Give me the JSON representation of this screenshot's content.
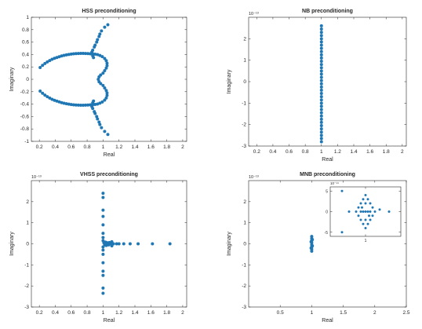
{
  "chart_data": [
    {
      "type": "scatter",
      "title": "HSS preconditioning",
      "xlabel": "Real",
      "ylabel": "Imaginary",
      "exponent": "",
      "xlim": [
        0.1,
        2.05
      ],
      "ylim": [
        -1,
        1
      ],
      "xticks": [
        0.2,
        0.4,
        0.6,
        0.8,
        1,
        1.2,
        1.4,
        1.6,
        1.8,
        2
      ],
      "yticks": [
        -1,
        -0.8,
        -0.6,
        -0.4,
        -0.2,
        0,
        0.2,
        0.4,
        0.6,
        0.8,
        1
      ],
      "xticklabels": [
        "0.2",
        "0.4",
        "0.6",
        "0.8",
        "1",
        "1.2",
        "1.4",
        "1.6",
        "1.8",
        "2"
      ],
      "yticklabels": [
        "-1",
        "-0.8",
        "-0.6",
        "-0.4",
        "-0.2",
        "0",
        "0.2",
        "0.4",
        "0.6",
        "0.8",
        "1"
      ],
      "color": "#1f77b4",
      "points": [
        [
          0.21,
          0.19
        ],
        [
          0.24,
          0.225
        ],
        [
          0.27,
          0.255
        ],
        [
          0.3,
          0.28
        ],
        [
          0.33,
          0.302
        ],
        [
          0.36,
          0.322
        ],
        [
          0.39,
          0.338
        ],
        [
          0.42,
          0.352
        ],
        [
          0.45,
          0.364
        ],
        [
          0.48,
          0.376
        ],
        [
          0.51,
          0.386
        ],
        [
          0.54,
          0.394
        ],
        [
          0.57,
          0.401
        ],
        [
          0.6,
          0.407
        ],
        [
          0.63,
          0.411
        ],
        [
          0.66,
          0.414
        ],
        [
          0.69,
          0.416
        ],
        [
          0.72,
          0.417
        ],
        [
          0.75,
          0.417
        ],
        [
          0.78,
          0.416
        ],
        [
          0.81,
          0.414
        ],
        [
          0.84,
          0.412
        ],
        [
          0.87,
          0.41
        ],
        [
          0.9,
          0.405
        ],
        [
          0.93,
          0.398
        ],
        [
          0.96,
          0.385
        ],
        [
          0.99,
          0.365
        ],
        [
          1.02,
          0.335
        ],
        [
          1.04,
          0.3
        ],
        [
          1.05,
          0.26
        ],
        [
          1.05,
          0.22
        ],
        [
          1.04,
          0.18
        ],
        [
          1.02,
          0.14
        ],
        [
          1.0,
          0.1
        ],
        [
          0.97,
          0.07
        ],
        [
          0.95,
          0.04
        ],
        [
          0.94,
          0.0
        ],
        [
          0.21,
          -0.19
        ],
        [
          0.24,
          -0.225
        ],
        [
          0.27,
          -0.255
        ],
        [
          0.3,
          -0.28
        ],
        [
          0.33,
          -0.302
        ],
        [
          0.36,
          -0.322
        ],
        [
          0.39,
          -0.338
        ],
        [
          0.42,
          -0.352
        ],
        [
          0.45,
          -0.364
        ],
        [
          0.48,
          -0.376
        ],
        [
          0.51,
          -0.386
        ],
        [
          0.54,
          -0.394
        ],
        [
          0.57,
          -0.401
        ],
        [
          0.6,
          -0.407
        ],
        [
          0.63,
          -0.411
        ],
        [
          0.66,
          -0.414
        ],
        [
          0.69,
          -0.416
        ],
        [
          0.72,
          -0.417
        ],
        [
          0.75,
          -0.417
        ],
        [
          0.78,
          -0.416
        ],
        [
          0.81,
          -0.414
        ],
        [
          0.84,
          -0.412
        ],
        [
          0.87,
          -0.41
        ],
        [
          0.9,
          -0.405
        ],
        [
          0.93,
          -0.398
        ],
        [
          0.96,
          -0.385
        ],
        [
          0.99,
          -0.365
        ],
        [
          1.02,
          -0.335
        ],
        [
          1.04,
          -0.3
        ],
        [
          1.05,
          -0.26
        ],
        [
          1.05,
          -0.22
        ],
        [
          1.04,
          -0.18
        ],
        [
          1.02,
          -0.14
        ],
        [
          1.0,
          -0.1
        ],
        [
          0.97,
          -0.07
        ],
        [
          0.95,
          -0.04
        ],
        [
          0.86,
          0.44
        ],
        [
          0.87,
          0.38
        ],
        [
          0.87,
          0.47
        ],
        [
          0.88,
          0.35
        ],
        [
          0.89,
          0.52
        ],
        [
          0.9,
          0.55
        ],
        [
          0.92,
          0.6
        ],
        [
          0.93,
          0.64
        ],
        [
          0.95,
          0.69
        ],
        [
          0.96,
          0.73
        ],
        [
          0.98,
          0.78
        ],
        [
          1.02,
          0.84
        ],
        [
          1.06,
          0.88
        ],
        [
          0.86,
          -0.44
        ],
        [
          0.87,
          -0.38
        ],
        [
          0.87,
          -0.47
        ],
        [
          0.88,
          -0.35
        ],
        [
          0.89,
          -0.52
        ],
        [
          0.9,
          -0.55
        ],
        [
          0.92,
          -0.6
        ],
        [
          0.93,
          -0.64
        ],
        [
          0.95,
          -0.69
        ],
        [
          0.96,
          -0.73
        ],
        [
          0.98,
          -0.78
        ],
        [
          1.02,
          -0.84
        ],
        [
          1.06,
          -0.89
        ]
      ]
    },
    {
      "type": "scatter",
      "title": "NB preconditioning",
      "xlabel": "Real",
      "ylabel": "Imaginary",
      "exponent": "10⁻¹³",
      "xlim": [
        0.1,
        2.05
      ],
      "ylim": [
        -3,
        3
      ],
      "xticks": [
        0.2,
        0.4,
        0.6,
        0.8,
        1,
        1.2,
        1.4,
        1.6,
        1.8,
        2
      ],
      "yticks": [
        -3,
        -2,
        -1,
        0,
        1,
        2
      ],
      "xticklabels": [
        "0.2",
        "0.4",
        "0.6",
        "0.8",
        "1",
        "1.2",
        "1.4",
        "1.6",
        "1.8",
        "2"
      ],
      "yticklabels": [
        "-3",
        "-2",
        "-1",
        "0",
        "1",
        "2"
      ],
      "color": "#1f77b4",
      "points": [
        [
          1,
          2.6
        ],
        [
          1,
          2.45
        ],
        [
          1,
          2.3
        ],
        [
          1,
          2.15
        ],
        [
          1,
          2.0
        ],
        [
          1,
          1.85
        ],
        [
          1,
          1.7
        ],
        [
          1,
          1.55
        ],
        [
          1,
          1.4
        ],
        [
          1,
          1.25
        ],
        [
          1,
          1.1
        ],
        [
          1,
          0.95
        ],
        [
          1,
          0.8
        ],
        [
          1,
          0.65
        ],
        [
          1,
          0.5
        ],
        [
          1,
          0.35
        ],
        [
          1,
          0.2
        ],
        [
          1,
          0.05
        ],
        [
          1,
          -0.1
        ],
        [
          1,
          -0.25
        ],
        [
          1,
          -0.4
        ],
        [
          1,
          -0.55
        ],
        [
          1,
          -0.7
        ],
        [
          1,
          -0.85
        ],
        [
          1,
          -1.0
        ],
        [
          1,
          -1.15
        ],
        [
          1,
          -1.3
        ],
        [
          1,
          -1.45
        ],
        [
          1,
          -1.6
        ],
        [
          1,
          -1.75
        ],
        [
          1,
          -1.9
        ],
        [
          1,
          -2.05
        ],
        [
          1,
          -2.2
        ],
        [
          1,
          -2.35
        ],
        [
          1,
          -2.5
        ],
        [
          1,
          -2.65
        ],
        [
          1,
          -2.8
        ]
      ]
    },
    {
      "type": "scatter",
      "title": "VHSS preconditioning",
      "xlabel": "Real",
      "ylabel": "Imaginary",
      "exponent": "10⁻¹³",
      "xlim": [
        0.1,
        2.05
      ],
      "ylim": [
        -3,
        3
      ],
      "xticks": [
        0.2,
        0.4,
        0.6,
        0.8,
        1,
        1.2,
        1.4,
        1.6,
        1.8,
        2
      ],
      "yticks": [
        -3,
        -2,
        -1,
        0,
        1,
        2
      ],
      "xticklabels": [
        "0.2",
        "0.4",
        "0.6",
        "0.8",
        "1",
        "1.2",
        "1.4",
        "1.6",
        "1.8",
        "2"
      ],
      "yticklabels": [
        "-3",
        "-2",
        "-1",
        "0",
        "1",
        "2"
      ],
      "color": "#1f77b4",
      "points": [
        [
          1,
          2.4
        ],
        [
          1,
          2.2
        ],
        [
          1,
          1.6
        ],
        [
          1,
          1.3
        ],
        [
          1,
          0.9
        ],
        [
          1,
          0.5
        ],
        [
          1,
          0.3
        ],
        [
          1,
          0.15
        ],
        [
          1,
          -0.15
        ],
        [
          1,
          -0.3
        ],
        [
          1,
          -0.5
        ],
        [
          1,
          -0.9
        ],
        [
          1,
          -1.3
        ],
        [
          1,
          -1.5
        ],
        [
          1,
          -2.1
        ],
        [
          1,
          -2.35
        ],
        [
          1.01,
          0.05
        ],
        [
          1.02,
          -0.05
        ],
        [
          1.03,
          0.08
        ],
        [
          1.04,
          -0.08
        ],
        [
          1.05,
          0.05
        ],
        [
          1.06,
          0
        ],
        [
          1.07,
          -0.05
        ],
        [
          1.08,
          0.06
        ],
        [
          1.1,
          0
        ],
        [
          1.11,
          0.1
        ],
        [
          1.11,
          -0.1
        ],
        [
          1.13,
          0
        ],
        [
          1.17,
          0
        ],
        [
          1.2,
          0
        ],
        [
          1.26,
          0
        ],
        [
          1.34,
          0
        ],
        [
          1.44,
          0
        ],
        [
          1.62,
          0
        ],
        [
          1.84,
          0
        ]
      ]
    },
    {
      "type": "scatter",
      "title": "MNB preconditioning",
      "xlabel": "Real",
      "ylabel": "Imaginary",
      "exponent": "10⁻¹³",
      "xlim": [
        0,
        2.5
      ],
      "ylim": [
        -3,
        3
      ],
      "xticks": [
        0.5,
        1,
        1.5,
        2,
        2.5
      ],
      "yticks": [
        -3,
        -2,
        -1,
        0,
        1,
        2
      ],
      "xticklabels": [
        "0.5",
        "1",
        "1.5",
        "2",
        "2.5"
      ],
      "yticklabels": [
        "-3",
        "-2",
        "-1",
        "0",
        "1",
        "2"
      ],
      "color": "#1f77b4",
      "points": [
        [
          1,
          0.35
        ],
        [
          1,
          0.25
        ],
        [
          1,
          0.15
        ],
        [
          1,
          0.05
        ],
        [
          1,
          -0.05
        ],
        [
          1,
          -0.15
        ],
        [
          1,
          -0.25
        ],
        [
          1,
          -0.35
        ],
        [
          0.99,
          0.1
        ],
        [
          1.01,
          -0.1
        ],
        [
          0.99,
          -0.2
        ],
        [
          1.01,
          0.2
        ]
      ],
      "inset": {
        "exponent": "10⁻¹⁴",
        "xlim": [
          0.85,
          1.15
        ],
        "ylim": [
          -6,
          6
        ],
        "xticks": [
          1
        ],
        "yticks": [
          -5,
          0,
          5
        ],
        "xticklabels": [
          "1"
        ],
        "yticklabels": [
          "-5",
          "0",
          "5"
        ],
        "points": [
          [
            0.9,
            5
          ],
          [
            0.93,
            0
          ],
          [
            0.9,
            -5
          ],
          [
            1.1,
            0
          ],
          [
            1.06,
            0.5
          ],
          [
            0.96,
            0
          ],
          [
            0.97,
            1
          ],
          [
            0.97,
            -1
          ],
          [
            0.98,
            2
          ],
          [
            0.98,
            -2
          ],
          [
            0.99,
            3
          ],
          [
            0.99,
            -3
          ],
          [
            1,
            4
          ],
          [
            1,
            -4
          ],
          [
            1,
            0
          ],
          [
            1,
            2
          ],
          [
            1,
            -2
          ],
          [
            1.01,
            3
          ],
          [
            1.01,
            -3
          ],
          [
            1.02,
            2
          ],
          [
            1.02,
            -2
          ],
          [
            1.03,
            1
          ],
          [
            1.03,
            -1
          ],
          [
            1.04,
            0
          ],
          [
            0.985,
            1
          ],
          [
            1.015,
            -1
          ],
          [
            0.99,
            0
          ],
          [
            1.01,
            0
          ],
          [
            1.02,
            0
          ],
          [
            0.98,
            0
          ]
        ]
      }
    }
  ]
}
